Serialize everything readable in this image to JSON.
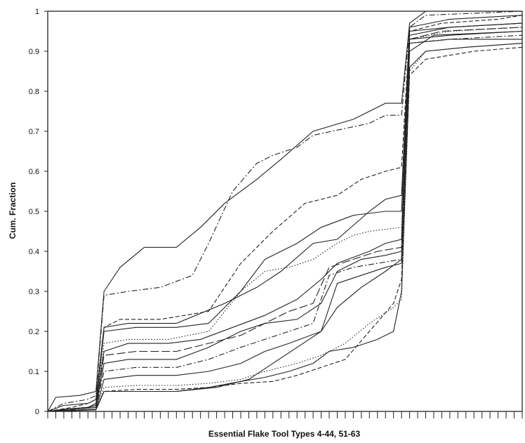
{
  "chart_data": {
    "type": "line",
    "title": "",
    "xlabel": "Essential Flake Tool Types 4-44, 51-63",
    "ylabel": "Cum. Fraction",
    "ylim": [
      0,
      1
    ],
    "xlim": [
      0,
      59
    ],
    "x_tick_count": 59,
    "y_ticks": [
      "0",
      "0.1",
      "0.2",
      "0.3",
      "0.4",
      "0.5",
      "0.6",
      "0.7",
      "0.8",
      "0.9",
      "1"
    ],
    "grid": false,
    "legend": "none",
    "line_color": "#222222",
    "series": [
      {
        "style": "solid",
        "points": [
          [
            0,
            0
          ],
          [
            1,
            0.035
          ],
          [
            4,
            0.04
          ],
          [
            6,
            0.05
          ],
          [
            7,
            0.3
          ],
          [
            9,
            0.36
          ],
          [
            12,
            0.41
          ],
          [
            16,
            0.41
          ],
          [
            19,
            0.46
          ],
          [
            22,
            0.52
          ],
          [
            26,
            0.58
          ],
          [
            29,
            0.63
          ],
          [
            33,
            0.7
          ],
          [
            38,
            0.73
          ],
          [
            42,
            0.77
          ],
          [
            44,
            0.77
          ],
          [
            45,
            0.97
          ],
          [
            47,
            1
          ],
          [
            59,
            1
          ]
        ]
      },
      {
        "style": "dash-dot",
        "points": [
          [
            0,
            0
          ],
          [
            2,
            0.02
          ],
          [
            5,
            0.03
          ],
          [
            6,
            0.04
          ],
          [
            7,
            0.29
          ],
          [
            10,
            0.3
          ],
          [
            14,
            0.31
          ],
          [
            18,
            0.34
          ],
          [
            20,
            0.42
          ],
          [
            23,
            0.55
          ],
          [
            26,
            0.62
          ],
          [
            28,
            0.64
          ],
          [
            31,
            0.66
          ],
          [
            33,
            0.69
          ],
          [
            40,
            0.72
          ],
          [
            42,
            0.74
          ],
          [
            44,
            0.74
          ],
          [
            45,
            0.96
          ],
          [
            47,
            0.99
          ],
          [
            53,
            0.995
          ],
          [
            59,
            1
          ]
        ]
      },
      {
        "style": "solid",
        "points": [
          [
            0,
            0
          ],
          [
            2,
            0.015
          ],
          [
            5,
            0.02
          ],
          [
            6,
            0.03
          ],
          [
            7,
            0.21
          ],
          [
            10,
            0.22
          ],
          [
            16,
            0.22
          ],
          [
            22,
            0.27
          ],
          [
            26,
            0.31
          ],
          [
            29,
            0.35
          ],
          [
            33,
            0.42
          ],
          [
            36,
            0.43
          ],
          [
            40,
            0.5
          ],
          [
            42,
            0.53
          ],
          [
            44,
            0.54
          ],
          [
            45,
            0.96
          ],
          [
            50,
            0.98
          ],
          [
            59,
            0.99
          ]
        ]
      },
      {
        "style": "dashed",
        "points": [
          [
            0,
            0
          ],
          [
            3,
            0.01
          ],
          [
            5,
            0.02
          ],
          [
            6,
            0.03
          ],
          [
            7,
            0.21
          ],
          [
            9,
            0.23
          ],
          [
            14,
            0.23
          ],
          [
            20,
            0.25
          ],
          [
            24,
            0.37
          ],
          [
            28,
            0.45
          ],
          [
            32,
            0.52
          ],
          [
            36,
            0.54
          ],
          [
            39,
            0.58
          ],
          [
            42,
            0.6
          ],
          [
            44,
            0.61
          ],
          [
            45,
            0.95
          ],
          [
            49,
            0.97
          ],
          [
            56,
            0.98
          ],
          [
            59,
            0.99
          ]
        ]
      },
      {
        "style": "solid",
        "points": [
          [
            0,
            0
          ],
          [
            2,
            0.005
          ],
          [
            5,
            0.01
          ],
          [
            6,
            0.02
          ],
          [
            7,
            0.2
          ],
          [
            11,
            0.21
          ],
          [
            16,
            0.21
          ],
          [
            20,
            0.22
          ],
          [
            24,
            0.3
          ],
          [
            27,
            0.38
          ],
          [
            31,
            0.42
          ],
          [
            34,
            0.46
          ],
          [
            38,
            0.49
          ],
          [
            42,
            0.5
          ],
          [
            44,
            0.5
          ],
          [
            45,
            0.94
          ],
          [
            50,
            0.96
          ],
          [
            59,
            0.97
          ]
        ]
      },
      {
        "style": "dotted",
        "points": [
          [
            0,
            0
          ],
          [
            3,
            0.005
          ],
          [
            5,
            0.01
          ],
          [
            6,
            0.02
          ],
          [
            7,
            0.17
          ],
          [
            10,
            0.18
          ],
          [
            15,
            0.18
          ],
          [
            20,
            0.2
          ],
          [
            24,
            0.3
          ],
          [
            27,
            0.35
          ],
          [
            30,
            0.36
          ],
          [
            33,
            0.38
          ],
          [
            36,
            0.42
          ],
          [
            38,
            0.44
          ],
          [
            40,
            0.45
          ],
          [
            44,
            0.46
          ],
          [
            45,
            0.93
          ],
          [
            50,
            0.95
          ],
          [
            59,
            0.96
          ]
        ]
      },
      {
        "style": "solid",
        "points": [
          [
            0,
            0
          ],
          [
            2,
            0.005
          ],
          [
            5,
            0.01
          ],
          [
            6,
            0.015
          ],
          [
            7,
            0.15
          ],
          [
            10,
            0.17
          ],
          [
            15,
            0.17
          ],
          [
            19,
            0.18
          ],
          [
            23,
            0.21
          ],
          [
            27,
            0.24
          ],
          [
            31,
            0.28
          ],
          [
            34,
            0.33
          ],
          [
            36,
            0.37
          ],
          [
            40,
            0.4
          ],
          [
            42,
            0.42
          ],
          [
            44,
            0.43
          ],
          [
            45,
            0.95
          ],
          [
            50,
            0.96
          ],
          [
            59,
            0.97
          ]
        ]
      },
      {
        "style": "long-dash",
        "points": [
          [
            0,
            0
          ],
          [
            2,
            0.005
          ],
          [
            5,
            0.01
          ],
          [
            6,
            0.015
          ],
          [
            7,
            0.14
          ],
          [
            11,
            0.15
          ],
          [
            16,
            0.15
          ],
          [
            20,
            0.17
          ],
          [
            24,
            0.19
          ],
          [
            27,
            0.22
          ],
          [
            30,
            0.25
          ],
          [
            33,
            0.27
          ],
          [
            35,
            0.36
          ],
          [
            38,
            0.38
          ],
          [
            41,
            0.4
          ],
          [
            44,
            0.41
          ],
          [
            45,
            0.93
          ],
          [
            49,
            0.95
          ],
          [
            59,
            0.96
          ]
        ]
      },
      {
        "style": "solid",
        "points": [
          [
            0,
            0
          ],
          [
            2,
            0.005
          ],
          [
            5,
            0.008
          ],
          [
            6,
            0.01
          ],
          [
            7,
            0.12
          ],
          [
            10,
            0.13
          ],
          [
            16,
            0.13
          ],
          [
            20,
            0.16
          ],
          [
            24,
            0.2
          ],
          [
            27,
            0.22
          ],
          [
            31,
            0.23
          ],
          [
            34,
            0.27
          ],
          [
            36,
            0.35
          ],
          [
            39,
            0.38
          ],
          [
            42,
            0.39
          ],
          [
            44,
            0.4
          ],
          [
            45,
            0.93
          ],
          [
            50,
            0.94
          ],
          [
            59,
            0.95
          ]
        ]
      },
      {
        "style": "dash-dot",
        "points": [
          [
            0,
            0
          ],
          [
            3,
            0.005
          ],
          [
            6,
            0.01
          ],
          [
            7,
            0.1
          ],
          [
            11,
            0.11
          ],
          [
            16,
            0.11
          ],
          [
            20,
            0.13
          ],
          [
            24,
            0.16
          ],
          [
            27,
            0.18
          ],
          [
            30,
            0.2
          ],
          [
            33,
            0.22
          ],
          [
            35,
            0.34
          ],
          [
            38,
            0.36
          ],
          [
            41,
            0.37
          ],
          [
            44,
            0.38
          ],
          [
            45,
            0.92
          ],
          [
            50,
            0.93
          ],
          [
            59,
            0.94
          ]
        ]
      },
      {
        "style": "solid",
        "points": [
          [
            0,
            0
          ],
          [
            3,
            0.003
          ],
          [
            6,
            0.005
          ],
          [
            7,
            0.08
          ],
          [
            11,
            0.09
          ],
          [
            16,
            0.09
          ],
          [
            20,
            0.1
          ],
          [
            24,
            0.12
          ],
          [
            27,
            0.15
          ],
          [
            30,
            0.17
          ],
          [
            34,
            0.2
          ],
          [
            36,
            0.32
          ],
          [
            39,
            0.34
          ],
          [
            42,
            0.36
          ],
          [
            44,
            0.37
          ],
          [
            45,
            0.92
          ],
          [
            50,
            0.93
          ],
          [
            59,
            0.93
          ]
        ]
      },
      {
        "style": "dotted",
        "points": [
          [
            0,
            0
          ],
          [
            3,
            0.003
          ],
          [
            6,
            0.005
          ],
          [
            7,
            0.06
          ],
          [
            11,
            0.065
          ],
          [
            16,
            0.065
          ],
          [
            20,
            0.07
          ],
          [
            24,
            0.08
          ],
          [
            27,
            0.1
          ],
          [
            31,
            0.12
          ],
          [
            34,
            0.14
          ],
          [
            37,
            0.17
          ],
          [
            40,
            0.22
          ],
          [
            43,
            0.26
          ],
          [
            44,
            0.28
          ],
          [
            45,
            0.85
          ],
          [
            47,
            0.9
          ],
          [
            52,
            0.91
          ],
          [
            59,
            0.92
          ]
        ]
      },
      {
        "style": "solid",
        "points": [
          [
            0,
            0
          ],
          [
            3,
            0.003
          ],
          [
            6,
            0.005
          ],
          [
            7,
            0.05
          ],
          [
            11,
            0.05
          ],
          [
            16,
            0.05
          ],
          [
            20,
            0.06
          ],
          [
            24,
            0.075
          ],
          [
            27,
            0.085
          ],
          [
            30,
            0.1
          ],
          [
            33,
            0.12
          ],
          [
            35,
            0.15
          ],
          [
            38,
            0.16
          ],
          [
            41,
            0.18
          ],
          [
            43,
            0.2
          ],
          [
            44,
            0.3
          ],
          [
            45,
            0.86
          ],
          [
            47,
            0.9
          ],
          [
            52,
            0.91
          ],
          [
            59,
            0.92
          ]
        ]
      },
      {
        "style": "dashed",
        "points": [
          [
            0,
            0
          ],
          [
            3,
            0.002
          ],
          [
            6,
            0.004
          ],
          [
            7,
            0.05
          ],
          [
            11,
            0.055
          ],
          [
            16,
            0.055
          ],
          [
            20,
            0.06
          ],
          [
            24,
            0.07
          ],
          [
            28,
            0.075
          ],
          [
            31,
            0.09
          ],
          [
            34,
            0.11
          ],
          [
            37,
            0.13
          ],
          [
            40,
            0.2
          ],
          [
            43,
            0.27
          ],
          [
            44,
            0.33
          ],
          [
            45,
            0.84
          ],
          [
            47,
            0.88
          ],
          [
            53,
            0.9
          ],
          [
            59,
            0.91
          ]
        ]
      },
      {
        "style": "solid",
        "points": [
          [
            0,
            0
          ],
          [
            3,
            0.002
          ],
          [
            6,
            0.004
          ],
          [
            7,
            0.05
          ],
          [
            12,
            0.05
          ],
          [
            16,
            0.05
          ],
          [
            21,
            0.06
          ],
          [
            25,
            0.08
          ],
          [
            28,
            0.12
          ],
          [
            31,
            0.16
          ],
          [
            34,
            0.2
          ],
          [
            36,
            0.26
          ],
          [
            39,
            0.31
          ],
          [
            42,
            0.35
          ],
          [
            44,
            0.38
          ],
          [
            45,
            0.9
          ],
          [
            48,
            0.94
          ],
          [
            59,
            0.95
          ]
        ]
      }
    ]
  }
}
